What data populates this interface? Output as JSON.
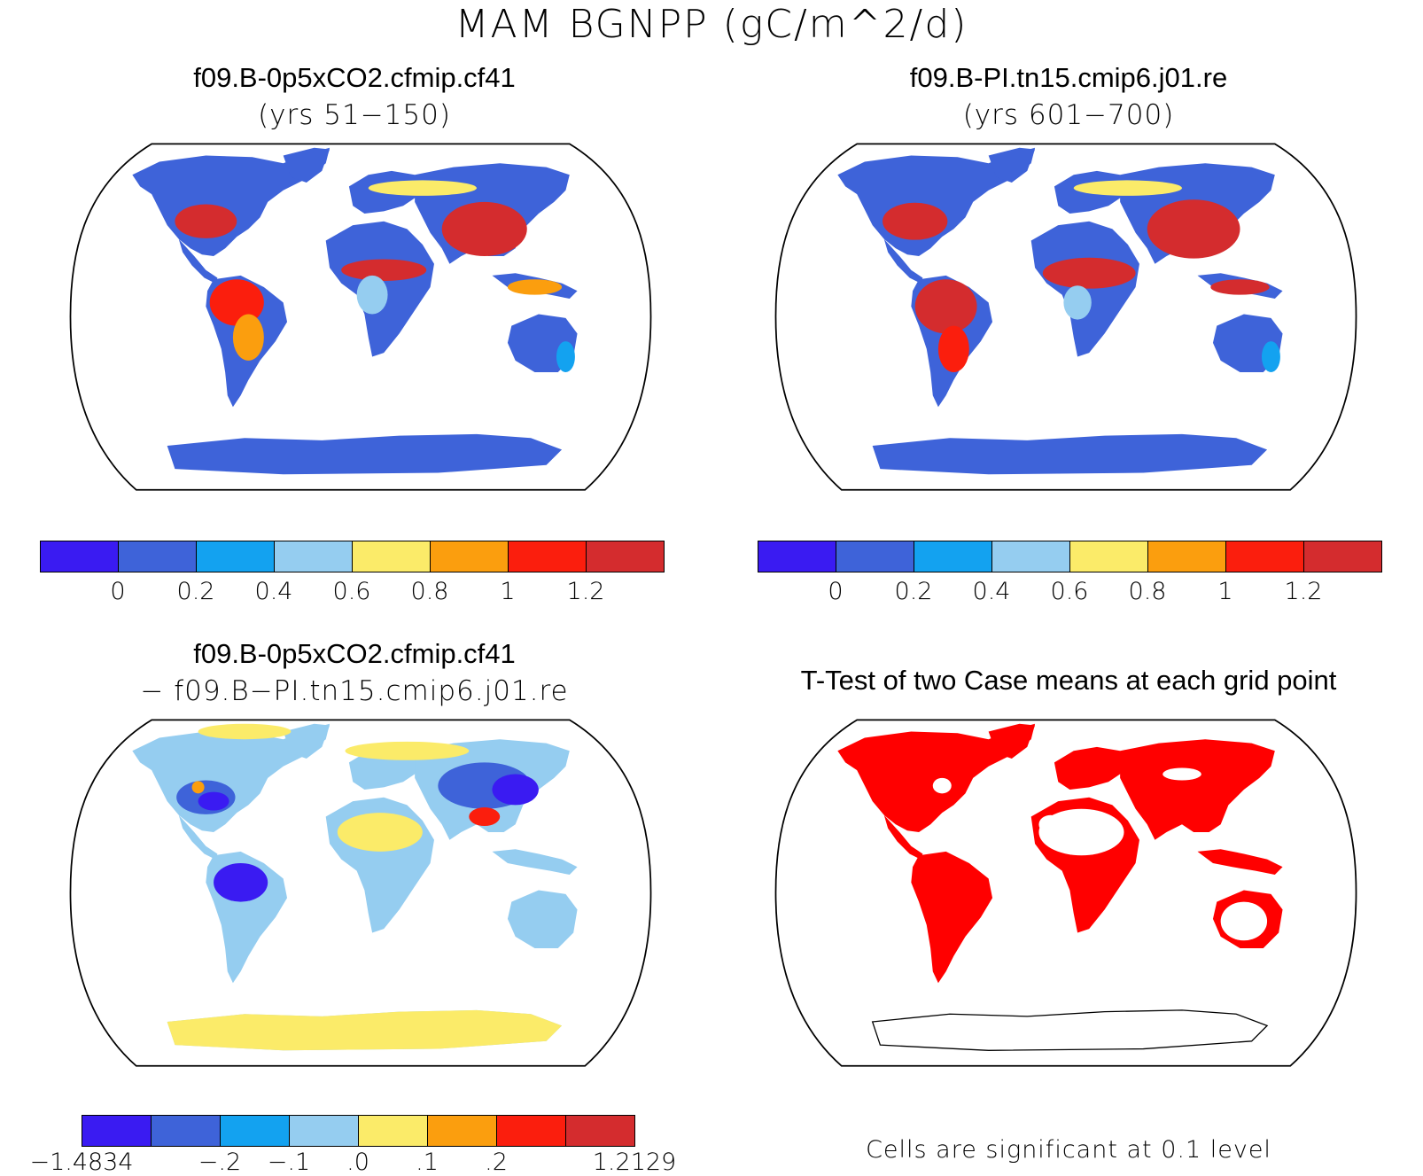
{
  "title": "MAM BGNPP (gC/m^2/d)",
  "panels": {
    "top_left": {
      "title": "f09.B-0p5xCO2.cfmip.cf41",
      "subtitle": "(yrs 51−150)"
    },
    "top_right": {
      "title": "f09.B-PI.tn15.cmip6.j01.re",
      "subtitle": "(yrs 601−700)"
    },
    "bottom_left": {
      "title": "f09.B-0p5xCO2.cfmip.cf41",
      "subtitle": "− f09.B−PI.tn15.cmip6.j01.re"
    },
    "bottom_right": {
      "title": "T-Test of two Case means at each grid point",
      "note": "Cells are significant at 0.1 level"
    }
  },
  "colorbars": {
    "absolute": {
      "colors": [
        "#3a1bf2",
        "#3e63d9",
        "#13a2f0",
        "#95cdf0",
        "#fbeb69",
        "#fb9e0e",
        "#fb1e0d",
        "#d42c2e"
      ],
      "tick_labels": [
        "0",
        "0.2",
        "0.4",
        "0.6",
        "0.8",
        "1",
        "1.2"
      ]
    },
    "difference": {
      "colors": [
        "#3a1bf2",
        "#3e63d9",
        "#13a2f0",
        "#95cdf0",
        "#fbeb69",
        "#fb9e0e",
        "#fb1e0d",
        "#d42c2e"
      ],
      "tick_labels": [
        "−1.4834",
        "−.2",
        "−.1",
        ".0",
        ".1",
        ".2",
        "1.2129"
      ]
    }
  },
  "map_colors": {
    "ocean": "#ffffff",
    "significant": "#ff0000",
    "abs_land": "#3e63d9",
    "abs_high": "#d42c2e",
    "abs_mid": "#fb1e0d",
    "abs_orange": "#fb9e0e",
    "abs_yellow": "#fbeb69",
    "abs_light": "#95cdf0",
    "abs_cyan": "#13a2f0",
    "diff_base": "#95cdf0",
    "diff_yellow": "#fbeb69",
    "diff_blue": "#3e63d9",
    "diff_deep": "#3a1bf2",
    "diff_orange": "#fb9e0e"
  }
}
